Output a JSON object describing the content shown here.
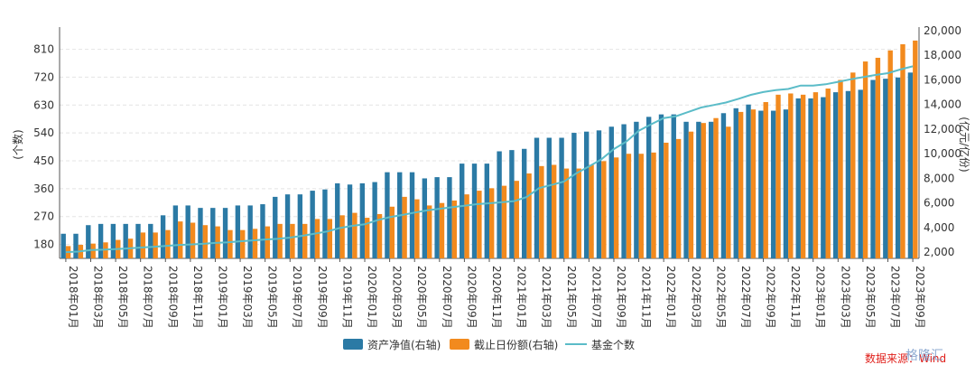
{
  "chart_data": {
    "type": "bar",
    "title": "",
    "categories": [
      "2018年01月",
      "2018年02月",
      "2018年03月",
      "2018年04月",
      "2018年05月",
      "2018年06月",
      "2018年07月",
      "2018年08月",
      "2018年09月",
      "2018年10月",
      "2018年11月",
      "2018年12月",
      "2019年01月",
      "2019年02月",
      "2019年03月",
      "2019年04月",
      "2019年05月",
      "2019年06月",
      "2019年07月",
      "2019年08月",
      "2019年09月",
      "2019年10月",
      "2019年11月",
      "2019年12月",
      "2020年01月",
      "2020年02月",
      "2020年03月",
      "2020年04月",
      "2020年05月",
      "2020年06月",
      "2020年07月",
      "2020年08月",
      "2020年09月",
      "2020年10月",
      "2020年11月",
      "2020年12月",
      "2021年01月",
      "2021年02月",
      "2021年03月",
      "2021年04月",
      "2021年05月",
      "2021年06月",
      "2021年07月",
      "2021年08月",
      "2021年09月",
      "2021年10月",
      "2021年11月",
      "2021年12月",
      "2022年01月",
      "2022年02月",
      "2022年03月",
      "2022年04月",
      "2022年05月",
      "2022年06月",
      "2022年07月",
      "2022年08月",
      "2022年09月",
      "2022年10月",
      "2022年11月",
      "2022年12月",
      "2023年01月",
      "2023年02月",
      "2023年03月",
      "2023年04月",
      "2023年05月",
      "2023年06月",
      "2023年07月",
      "2023年08月",
      "2023年09月"
    ],
    "x_tick_labels": [
      "2018年01月",
      "2018年03月",
      "2018年05月",
      "2018年07月",
      "2018年09月",
      "2018年11月",
      "2019年01月",
      "2019年03月",
      "2019年05月",
      "2019年07月",
      "2019年09月",
      "2019年11月",
      "2020年01月",
      "2020年03月",
      "2020年05月",
      "2020年07月",
      "2020年09月",
      "2020年11月",
      "2021年01月",
      "2021年03月",
      "2021年05月",
      "2021年07月",
      "2021年09月",
      "2021年11月",
      "2022年01月",
      "2022年03月",
      "2022年05月",
      "2022年07月",
      "2022年09月",
      "2022年11月",
      "2023年01月",
      "2023年03月",
      "2023年05月",
      "2023年07月",
      "2023年09月"
    ],
    "series": [
      {
        "name": "资产净值(右轴)",
        "type": "bar",
        "axis": "right",
        "color": "#2b7aa5",
        "values": [
          3500,
          3500,
          4200,
          4300,
          4300,
          4300,
          4300,
          4300,
          5000,
          5800,
          5800,
          5600,
          5600,
          5600,
          5800,
          5800,
          5900,
          6500,
          6700,
          6700,
          7000,
          7100,
          7600,
          7500,
          7600,
          7700,
          8500,
          8500,
          8500,
          8000,
          8100,
          8100,
          9200,
          9200,
          9200,
          10200,
          10300,
          10400,
          11300,
          11300,
          11300,
          11700,
          11800,
          11900,
          12200,
          12400,
          12600,
          13000,
          13200,
          13200,
          12600,
          12600,
          12600,
          13300,
          13700,
          14000,
          13500,
          13500,
          13600,
          14500,
          14500,
          14600,
          15000,
          15100,
          15200,
          16000,
          16100,
          16200,
          16600
        ]
      },
      {
        "name": "截止日份额(右轴)",
        "type": "bar",
        "axis": "right",
        "color": "#f28a1e",
        "values": [
          2500,
          2600,
          2700,
          2800,
          3000,
          3100,
          3600,
          3600,
          3800,
          4500,
          4400,
          4200,
          4100,
          3800,
          3800,
          3900,
          4100,
          4300,
          4300,
          4300,
          4700,
          4700,
          5000,
          5200,
          4800,
          5100,
          5700,
          6500,
          6300,
          5800,
          6000,
          6200,
          6700,
          7000,
          7200,
          7400,
          7800,
          8400,
          9000,
          9100,
          8800,
          8800,
          9100,
          9400,
          9700,
          10000,
          10000,
          10100,
          10900,
          11200,
          11800,
          12500,
          12900,
          12200,
          13400,
          13600,
          14200,
          14800,
          14900,
          14800,
          15000,
          15300,
          16000,
          16600,
          17500,
          17800,
          18400,
          18900,
          19200
        ]
      },
      {
        "name": "基金个数",
        "type": "line",
        "axis": "left",
        "color": "#5bbcc8",
        "values": [
          155,
          157,
          162,
          163,
          165,
          167,
          170,
          172,
          175,
          178,
          180,
          182,
          185,
          187,
          190,
          193,
          196,
          198,
          202,
          208,
          215,
          222,
          233,
          240,
          245,
          258,
          268,
          275,
          283,
          290,
          295,
          300,
          305,
          310,
          313,
          316,
          320,
          333,
          362,
          372,
          383,
          410,
          432,
          455,
          488,
          512,
          547,
          568,
          588,
          594,
          608,
          622,
          630,
          638,
          650,
          663,
          672,
          678,
          682,
          693,
          693,
          697,
          705,
          713,
          720,
          727,
          733,
          745,
          755
        ]
      }
    ],
    "left_axis": {
      "label": "(个数)",
      "ticks": [
        180,
        270,
        360,
        450,
        540,
        630,
        720,
        810
      ],
      "range": [
        135,
        870
      ]
    },
    "right_axis": {
      "label": "(亿元/亿份)",
      "ticks": [
        2000,
        4000,
        6000,
        8000,
        10000,
        12000,
        14000,
        16000,
        18000,
        20000
      ],
      "tick_labels": [
        "2,000",
        "4,000",
        "6,000",
        "8,000",
        "10,000",
        "12,000",
        "14,000",
        "16,000",
        "18,000",
        "20,000"
      ],
      "range": [
        1500,
        20000
      ]
    },
    "grid": true,
    "legend_position": "bottom-center"
  },
  "legend": {
    "items": [
      {
        "label": "资产净值(右轴)",
        "color": "#2b7aa5",
        "kind": "bar"
      },
      {
        "label": "截止日份额(右轴)",
        "color": "#f28a1e",
        "kind": "bar"
      },
      {
        "label": "基金个数",
        "color": "#5bbcc8",
        "kind": "line"
      }
    ]
  },
  "source": {
    "text": "数据来源：Wind"
  },
  "watermark": {
    "text": "格隆汇"
  }
}
